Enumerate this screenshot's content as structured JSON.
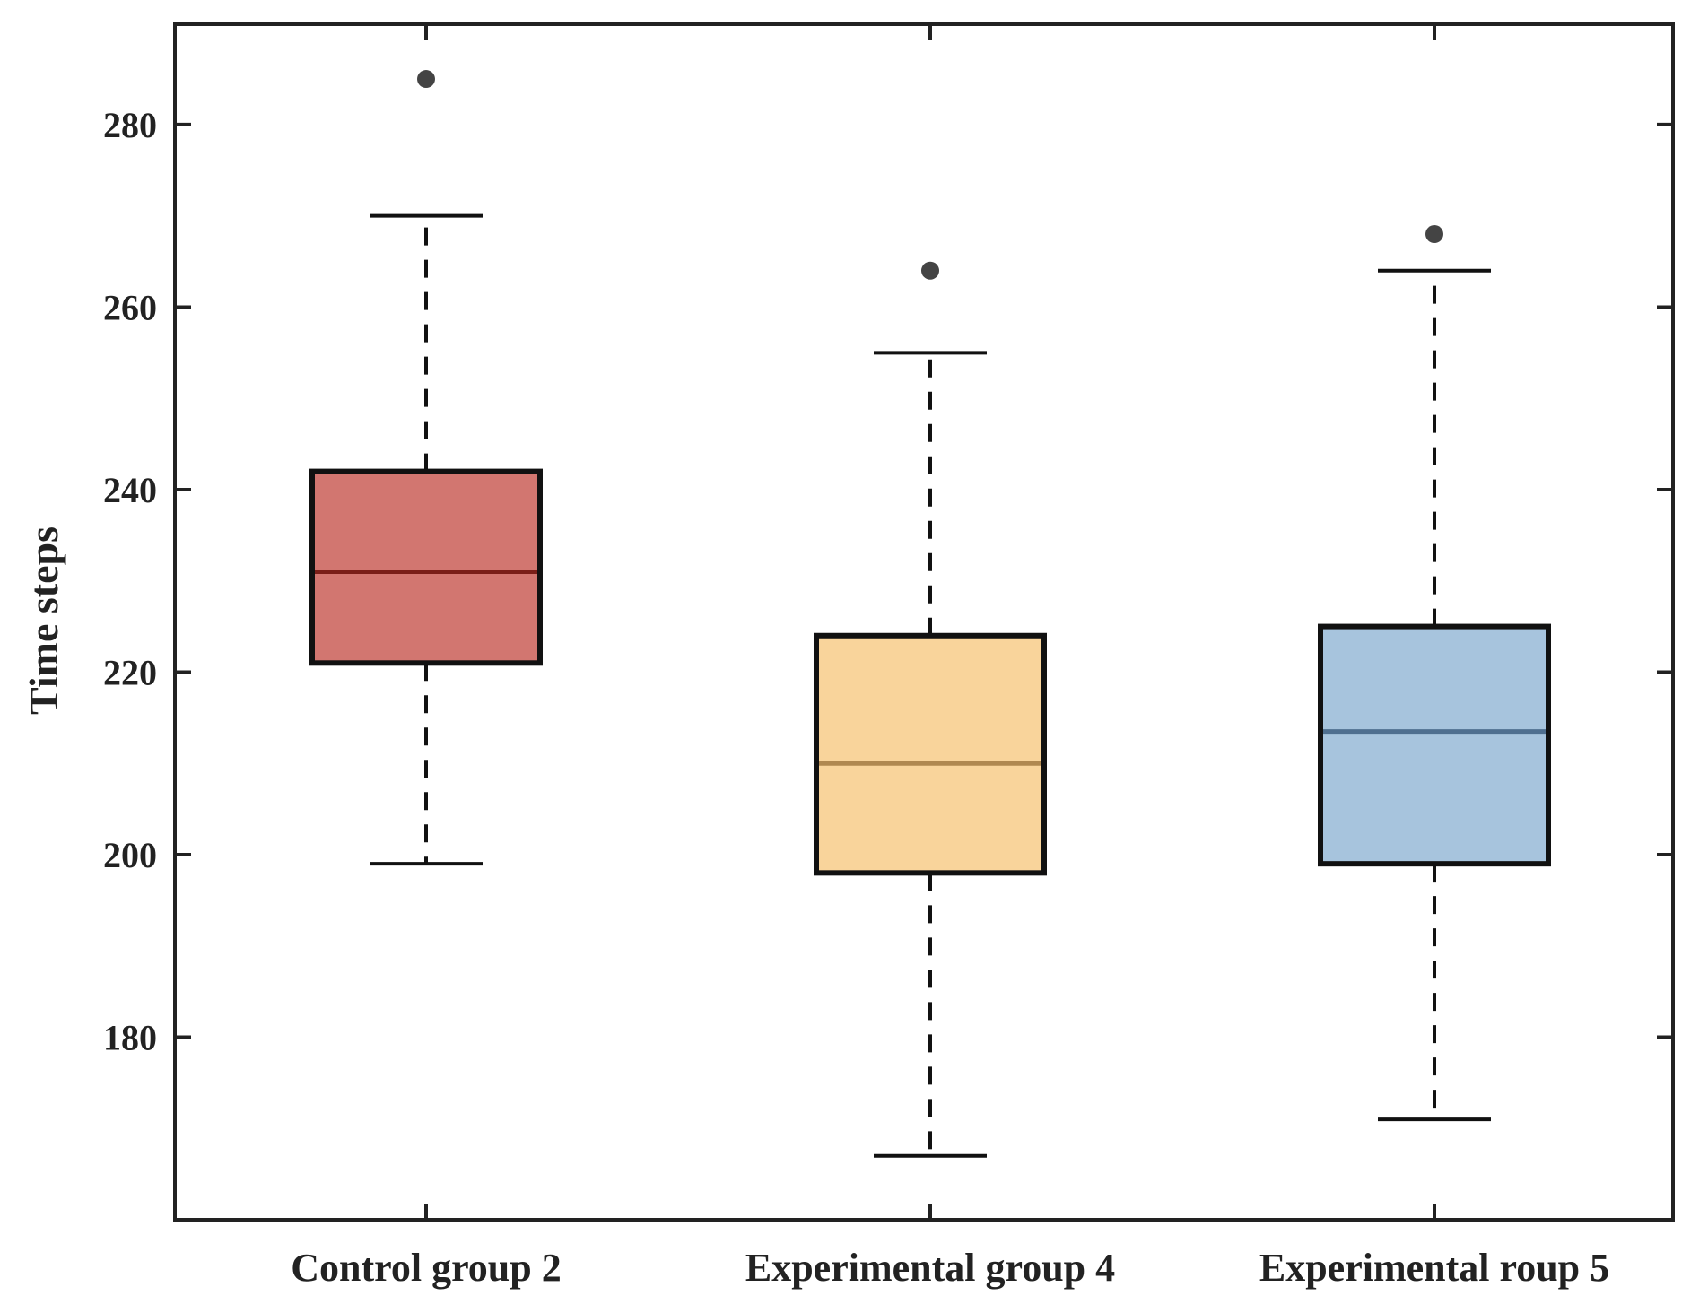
{
  "chart_data": {
    "type": "box",
    "title": "",
    "xlabel": "",
    "ylabel": "Time steps",
    "ylim": [
      160,
      291
    ],
    "yticks": [
      180,
      200,
      220,
      240,
      260,
      280
    ],
    "categories": [
      "Control group 2",
      "Experimental group 4",
      "Experimental roup 5"
    ],
    "boxes": [
      {
        "name": "Control group 2",
        "whisker_low": 199,
        "q1": 221,
        "median": 231,
        "q3": 242,
        "whisker_high": 270,
        "outliers": [
          285
        ],
        "fill": "#d27670",
        "median_color": "#7a1e18"
      },
      {
        "name": "Experimental group 4",
        "whisker_low": 167,
        "q1": 198,
        "median": 210,
        "q3": 224,
        "whisker_high": 255,
        "outliers": [
          264
        ],
        "fill": "#f9d49b",
        "median_color": "#b08850"
      },
      {
        "name": "Experimental roup 5",
        "whisker_low": 171,
        "q1": 199,
        "median": 213.5,
        "q3": 225,
        "whisker_high": 264,
        "outliers": [
          268
        ],
        "fill": "#a7c4dd",
        "median_color": "#4f6f8f"
      }
    ],
    "colors": {
      "axis": "#222222",
      "outlier": "#444444",
      "box_edge": "#111111"
    }
  }
}
